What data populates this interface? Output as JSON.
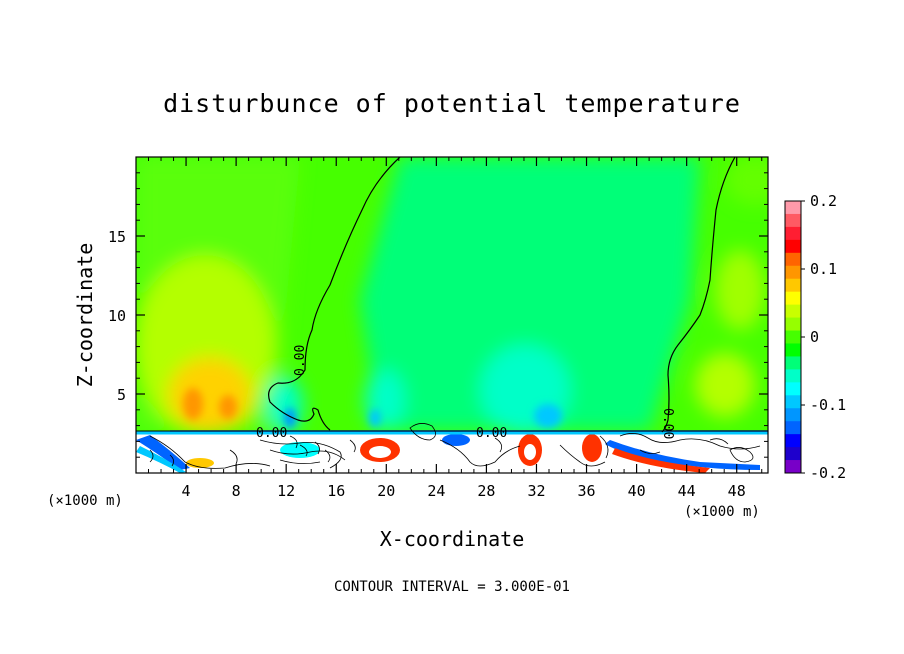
{
  "chart_data": {
    "type": "heatmap",
    "title": "disturbunce of potential temperature",
    "xlabel": "X-coordinate",
    "ylabel": "Z-coordinate",
    "x_unit_label_left": "(×1000 m)",
    "x_unit_label_right": "(×1000 m)",
    "x_ticks": [
      "4",
      "8",
      "12",
      "16",
      "20",
      "24",
      "28",
      "32",
      "36",
      "40",
      "44",
      "48"
    ],
    "y_ticks": [
      "5",
      "10",
      "15"
    ],
    "xlim": [
      0,
      50.5
    ],
    "ylim": [
      0,
      20
    ],
    "colorbar_ticks": [
      "0.2",
      "0.1",
      "0",
      "-0.1",
      "-0.2"
    ],
    "colorbar_range": [
      -0.2,
      0.2
    ],
    "colorbar_colors": [
      "#ff9aaa",
      "#ff5a64",
      "#ff1e32",
      "#ff0000",
      "#ff6400",
      "#ff9600",
      "#ffc800",
      "#ffff00",
      "#c8ff00",
      "#96ff00",
      "#46ff00",
      "#00ff00",
      "#00ff78",
      "#00ffc8",
      "#00ffff",
      "#00c8ff",
      "#0096ff",
      "#0064ff",
      "#0000ff",
      "#1e00cc",
      "#7800c8"
    ],
    "contour_label": "0.00",
    "footer": "CONTOUR INTERVAL = 3.000E-01"
  }
}
